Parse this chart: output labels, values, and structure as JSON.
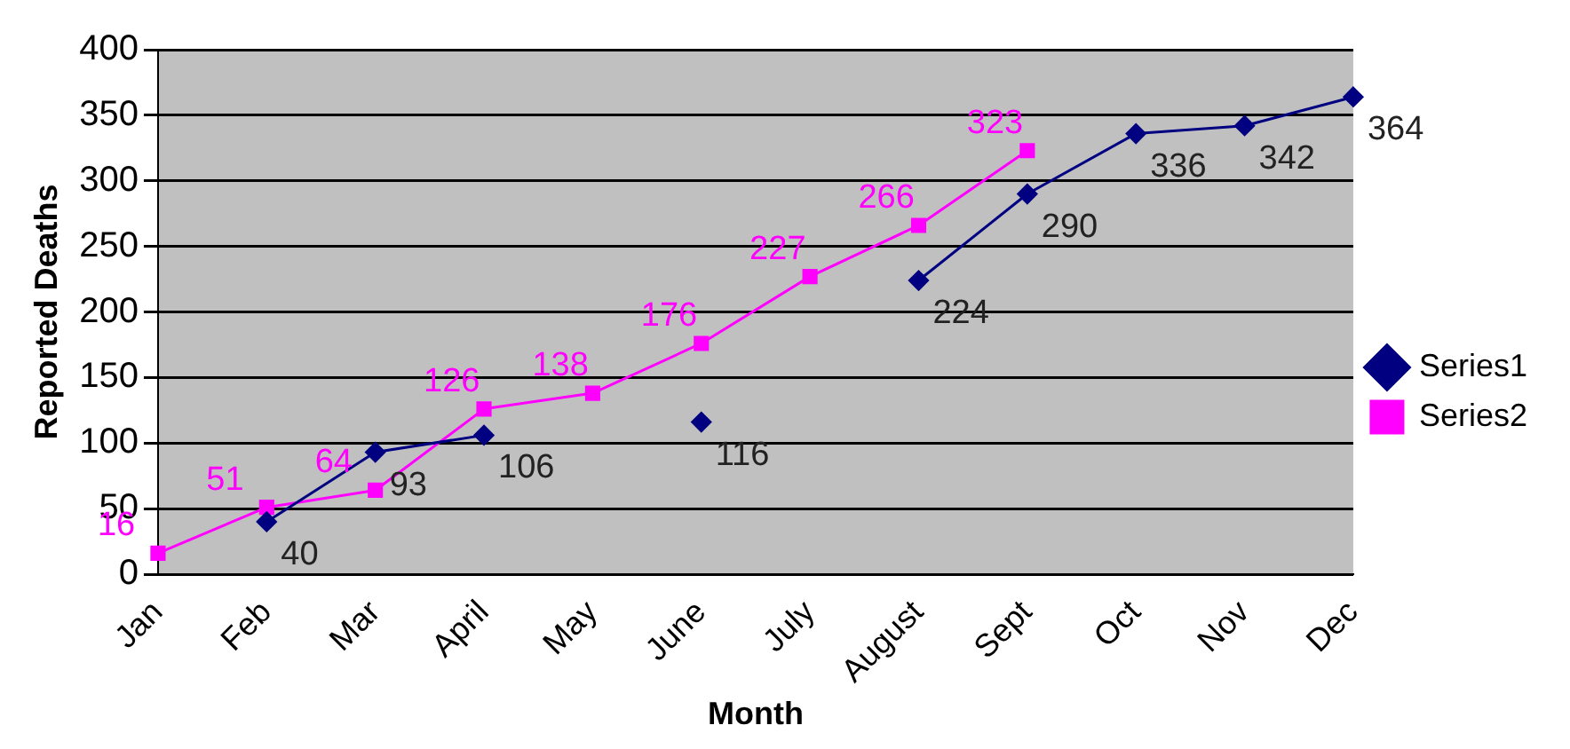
{
  "chart_data": {
    "type": "line",
    "xlabel": "Month",
    "ylabel": "Reported Deaths",
    "categories": [
      "Jan",
      "Feb",
      "Mar",
      "April",
      "May",
      "June",
      "July",
      "August",
      "Sept",
      "Oct",
      "Nov",
      "Dec"
    ],
    "series": [
      {
        "name": "Series1",
        "color": "#000080",
        "marker": "diamond",
        "values": [
          null,
          40,
          93,
          106,
          null,
          116,
          null,
          224,
          290,
          336,
          342,
          364
        ]
      },
      {
        "name": "Series2",
        "color": "#ff00ff",
        "marker": "square",
        "values": [
          16,
          51,
          64,
          126,
          138,
          176,
          227,
          266,
          323,
          null,
          null,
          null
        ]
      }
    ],
    "ylim": [
      0,
      400
    ],
    "yticks": [
      0,
      50,
      100,
      150,
      200,
      250,
      300,
      350,
      400
    ],
    "grid": "y",
    "legend": "right",
    "data_labels": true
  }
}
